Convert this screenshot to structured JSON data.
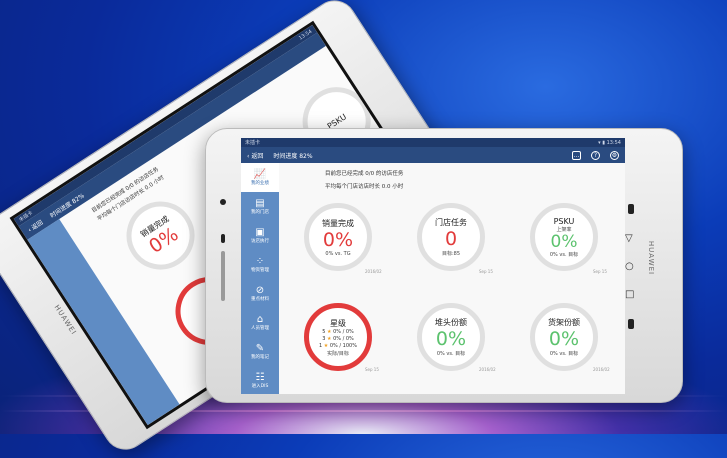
{
  "device": {
    "brand": "HUAWEI"
  },
  "status": {
    "carrier": "未插卡",
    "time": "13:54"
  },
  "nav": {
    "back": "返回",
    "progress": "时间进度 82%"
  },
  "sidebar": {
    "items": [
      {
        "label": "我的业绩",
        "icon": "chart-icon",
        "active": true
      },
      {
        "label": "我的门店",
        "icon": "store-icon"
      },
      {
        "label": "访店执行",
        "icon": "clipboard-icon"
      },
      {
        "label": "物资管理",
        "icon": "grid-icon"
      },
      {
        "label": "重点材料",
        "icon": "paperclip-icon"
      },
      {
        "label": "人员管理",
        "icon": "people-icon"
      },
      {
        "label": "我的笔记",
        "icon": "note-icon"
      },
      {
        "label": "进入DIS",
        "icon": "list-icon"
      }
    ]
  },
  "summary": {
    "line1": "目前您已经完成 0/0 的访店任务",
    "line2": "平均每个门店访店时长 0.0 小时"
  },
  "cards": [
    {
      "title": "销量完成",
      "value": "0%",
      "sub": "0% vs. TG",
      "date": "2016/02",
      "color": "#e23b3b"
    },
    {
      "title": "门店任务",
      "value": "0",
      "sub": "目标:85",
      "date": "Sep 15",
      "color": "#e23b3b"
    },
    {
      "title": "PSKU",
      "subtitle": "上架率",
      "value": "0%",
      "sub": "0% vs. 目标",
      "date": "Sep 15",
      "color": "#5cc26e"
    },
    {
      "title": "星级",
      "stars": [
        {
          "n": "5",
          "v": "0% / 0%"
        },
        {
          "n": "3",
          "v": "0% / 0%"
        },
        {
          "n": "1",
          "v": "0% / 100%"
        }
      ],
      "sub": "实际/目标",
      "date": "Sep 15",
      "color": "#e23b3b"
    },
    {
      "title": "堆头份额",
      "value": "0%",
      "sub": "0% vs. 目标",
      "date": "2016/02",
      "color": "#5cc26e"
    },
    {
      "title": "货架份额",
      "value": "0%",
      "sub": "0% vs. 目标",
      "date": "2016/02",
      "color": "#5cc26e"
    }
  ]
}
